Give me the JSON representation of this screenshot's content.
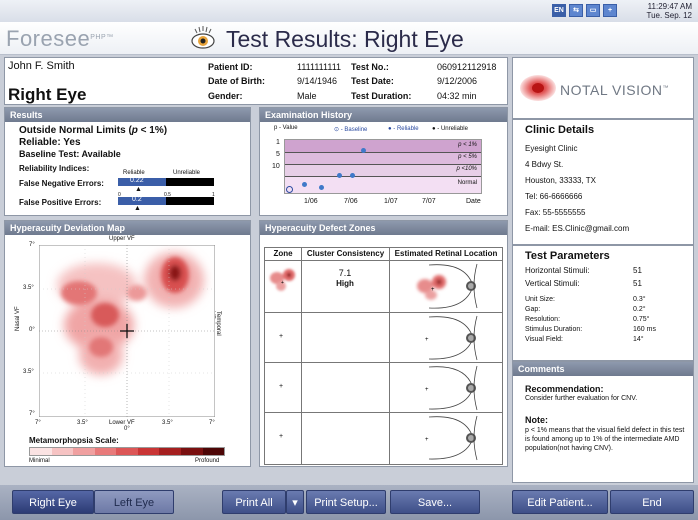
{
  "system": {
    "icons": [
      "EN",
      "network-icon",
      "battery-icon",
      "plus-icon"
    ],
    "time": "11:29:47 AM",
    "date": "Tue. Sep. 12"
  },
  "header": {
    "logo": "Foresee",
    "logo_sup": "PHP™",
    "title": "Test Results: Right Eye"
  },
  "patient": {
    "name": "John F. Smith",
    "eye": "Right Eye",
    "patient_id_label": "Patient ID:",
    "patient_id": "1111111111",
    "dob_label": "Date of Birth:",
    "dob": "9/14/1946",
    "gender_label": "Gender:",
    "gender": "Male",
    "test_no_label": "Test No.:",
    "test_no": "060912112918",
    "test_date_label": "Test Date:",
    "test_date": "9/12/2006",
    "test_duration_label": "Test Duration:",
    "test_duration": "04:32 min"
  },
  "brand": {
    "name": "NOTAL VISION",
    "tm": "™"
  },
  "clinic": {
    "title": "Clinic Details",
    "name": "Eyesight Clinic",
    "street": "4 Bdwy St.",
    "city": "Houston, 33333, TX",
    "tel": "Tel: 66-6666666",
    "fax": "Fax: 55-5555555",
    "email": "E-mail: ES.Clinic@gmail.com"
  },
  "params": {
    "title": "Test Parameters",
    "horizontal_label": "Horizontal Stimuli:",
    "horizontal": "51",
    "vertical_label": "Vertical Stimuli:",
    "vertical": "51",
    "unit_label": "Unit Size:",
    "unit": "0.3°",
    "gap_label": "Gap:",
    "gap": "0.2°",
    "resolution_label": "Resolution:",
    "resolution": "0.75°",
    "duration_label": "Stimulus Duration:",
    "duration": "160 ms",
    "vf_label": "Visual Field:",
    "vf": "14°"
  },
  "comments": {
    "title": "Comments",
    "rec_title": "Recommendation:",
    "rec_text": "Consider further evaluation for CNV.",
    "note_title": "Note:",
    "note_text": "p < 1% means that the visual field defect in this test is found among up to 1% of the intermediate AMD population(not having CNV)."
  },
  "results": {
    "title": "Results",
    "outside": "Outside Normal Limits (",
    "outside_p": "p",
    "outside_end": " < 1%)",
    "reliable": "Reliable: Yes",
    "baseline": "Baseline Test: Available",
    "indices": "Reliability Indices:",
    "reliable_tag": "Reliable",
    "unreliable_tag": "Unreliable",
    "fn_label": "False Negative Errors:",
    "fn_value": "0.22",
    "fp_label": "False Positive Errors:",
    "fp_value": "0.2",
    "scale": [
      "0",
      "0.5",
      "1"
    ]
  },
  "history": {
    "title": "Examination History",
    "pvalue": "p - Value",
    "legend_baseline": "- Baseline",
    "legend_reliable": "- Reliable",
    "legend_unreliable": "- Unreliable",
    "y_ticks": [
      "1",
      "5",
      "10"
    ],
    "bands": [
      "p < 1%",
      "p < 5%",
      "p <10%",
      "Normal"
    ],
    "x_ticks": [
      "1/06",
      "7/06",
      "1/07",
      "7/07"
    ],
    "x_unit": "Date"
  },
  "map": {
    "title": "Hyperacuity Deviation Map",
    "upper": "Upper VF",
    "lower": "Lower VF",
    "nasal": "Nasal VF",
    "temporal": "Temporal VF",
    "y_ticks": [
      "7°",
      "3.5°",
      "0°",
      "3.5°",
      "7°"
    ],
    "x_ticks": [
      "7°",
      "3.5°",
      "0°",
      "3.5°",
      "7°"
    ],
    "scale_title": "Metamorphopsia Scale:",
    "scale_min": "Minimal",
    "scale_max": "Profound",
    "scale_colors": [
      "#fbe3e3",
      "#f6c3c3",
      "#f0a0a0",
      "#e87a7a",
      "#dc5656",
      "#c93535",
      "#a51f1f",
      "#7a1010",
      "#4d0606"
    ]
  },
  "zones": {
    "title": "Hyperacuity Defect Zones",
    "col_zone": "Zone",
    "col_consistency": "Cluster Consistency",
    "col_location": "Estimated Retinal Location",
    "row1_value": "7.1",
    "row1_level": "High"
  },
  "buttons": {
    "right_eye": "Right Eye",
    "left_eye": "Left Eye",
    "print_all": "Print All",
    "print_setup": "Print Setup...",
    "save": "Save...",
    "edit_patient": "Edit Patient...",
    "end": "End"
  }
}
